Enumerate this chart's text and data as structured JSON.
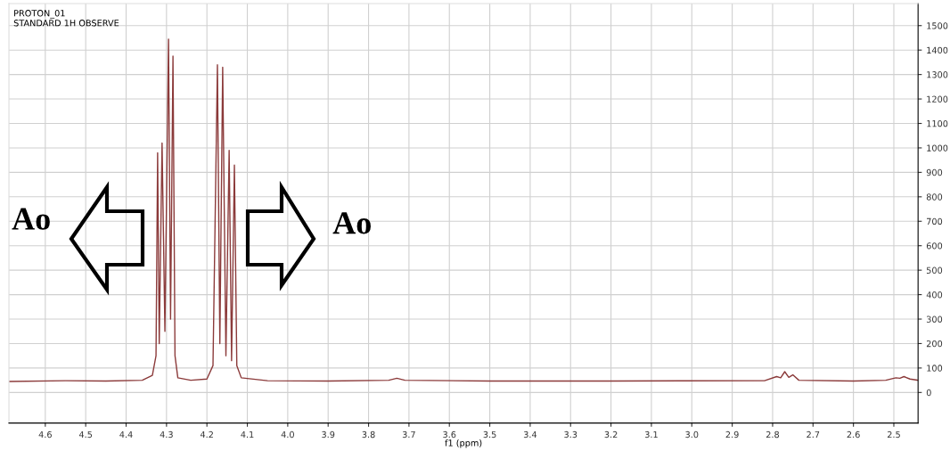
{
  "chart_data": {
    "type": "line",
    "xlabel": "f1 (ppm)",
    "annotations": [
      "PROTON_01",
      "STANDARD 1H OBSERVE",
      "Ao",
      "Ao"
    ],
    "series": [
      {
        "color": "#8b3a3a",
        "x": [
          4.69,
          4.55,
          4.45,
          4.36,
          4.335,
          4.326,
          4.322,
          4.318,
          4.311,
          4.304,
          4.295,
          4.29,
          4.284,
          4.279,
          4.272,
          4.24,
          4.2,
          4.185,
          4.174,
          4.168,
          4.161,
          4.153,
          4.145,
          4.139,
          4.132,
          4.126,
          4.115,
          4.05,
          3.9,
          3.75,
          3.73,
          3.71,
          3.5,
          3.2,
          2.82,
          2.79,
          2.78,
          2.77,
          2.76,
          2.75,
          2.735,
          2.6,
          2.52,
          2.495,
          2.485,
          2.475,
          2.46,
          2.44
        ],
        "values": [
          45,
          48,
          47,
          50,
          70,
          150,
          980,
          200,
          1020,
          250,
          1445,
          300,
          1375,
          150,
          60,
          50,
          55,
          110,
          1340,
          200,
          1330,
          150,
          990,
          130,
          930,
          110,
          60,
          48,
          47,
          50,
          58,
          50,
          47,
          47,
          48,
          65,
          60,
          85,
          62,
          72,
          50,
          47,
          50,
          60,
          58,
          65,
          55,
          50
        ]
      }
    ],
    "xlim": [
      4.69,
      2.44
    ],
    "ylim": [
      -125,
      1590
    ],
    "xticks": [
      4.6,
      4.5,
      4.4,
      4.3,
      4.2,
      4.1,
      {
        "value": 4.0,
        "label": "4.0"
      },
      3.9,
      3.8,
      3.7,
      3.6,
      3.5,
      3.4,
      3.3,
      3.2,
      3.1,
      {
        "value": 3.0,
        "label": "3.0"
      },
      2.9,
      2.8,
      2.7,
      2.6,
      2.5
    ],
    "yticks": [
      0,
      100,
      200,
      300,
      400,
      500,
      600,
      700,
      800,
      900,
      1000,
      1100,
      1200,
      1300,
      1400,
      1500
    ],
    "grid": true,
    "marker": "none",
    "line_style": "solid"
  }
}
